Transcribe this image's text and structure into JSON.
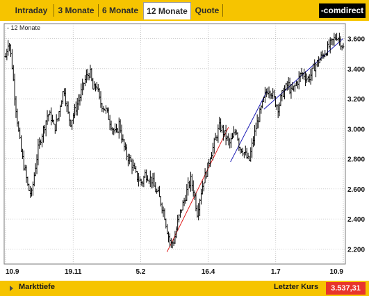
{
  "tabs": [
    {
      "label": "Intraday",
      "active": false
    },
    {
      "label": "3 Monate",
      "active": false
    },
    {
      "label": "6 Monate",
      "active": false
    },
    {
      "label": "12 Monate",
      "active": true
    },
    {
      "label": "Quote",
      "active": false
    }
  ],
  "brand": "-comdirect",
  "footer": {
    "depth_label": "Markttiefe",
    "last_price_label": "Letzter Kurs",
    "last_price_value": "3.537,31"
  },
  "colors": {
    "bar_yellow": "#f6c400",
    "price": "#000000",
    "trend_red": "#e01b1b",
    "trend_blue": "#1a1ab5",
    "grid": "#a0a0a0",
    "last_price_bg": "#e8342b"
  },
  "chart_data": {
    "type": "line",
    "legend": "12 Monate",
    "ylim": [
      2100,
      3700
    ],
    "yticks": [
      2200,
      2400,
      2600,
      2800,
      3000,
      3200,
      3400,
      3600
    ],
    "ytick_labels": [
      "2.200",
      "2.400",
      "2.600",
      "2.800",
      "3.000",
      "3.200",
      "3.400",
      "3.600"
    ],
    "xtick_labels": [
      "10.9",
      "19.11",
      "5.2",
      "16.4",
      "1.7",
      "10.9"
    ],
    "grid": true,
    "series": [
      {
        "style": "ohlc-bars",
        "color": "#000000",
        "values": [
          3480,
          3600,
          3420,
          3180,
          2980,
          2820,
          2720,
          2600,
          2560,
          2720,
          2860,
          2950,
          3020,
          3100,
          3080,
          3000,
          3060,
          3180,
          3270,
          3120,
          3040,
          3100,
          3160,
          3220,
          3300,
          3350,
          3380,
          3250,
          3300,
          3180,
          3150,
          3120,
          3060,
          3000,
          2960,
          3040,
          2920,
          2840,
          2800,
          2760,
          2700,
          2660,
          2640,
          2700,
          2680,
          2660,
          2600,
          2560,
          2500,
          2420,
          2300,
          2230,
          2260,
          2380,
          2460,
          2520,
          2600,
          2660,
          2580,
          2440,
          2560,
          2660,
          2720,
          2820,
          2880,
          2960,
          3020,
          2980,
          2940,
          2900,
          2940,
          3000,
          2880,
          2860,
          2820,
          2780,
          2900,
          3000,
          3080,
          3150,
          3230,
          3270,
          3240,
          3180,
          3140,
          3220,
          3260,
          3300,
          3240,
          3280,
          3320,
          3370,
          3360,
          3330,
          3360,
          3410,
          3440,
          3470,
          3500,
          3530,
          3560,
          3590,
          3620,
          3590,
          3537
        ]
      },
      {
        "name": "",
        "style": "trendline",
        "color": "#e01b1b",
        "points": [
          [
            0.478,
            2180
          ],
          [
            0.66,
            3010
          ]
        ]
      },
      {
        "name": "",
        "style": "trendline",
        "color": "#1a1ab5",
        "points": [
          [
            0.666,
            2780
          ],
          [
            0.774,
            3250
          ]
        ]
      },
      {
        "name": "",
        "style": "trendline",
        "color": "#1a1ab5",
        "points": [
          [
            0.765,
            3130
          ],
          [
            0.999,
            3600
          ]
        ]
      }
    ]
  }
}
